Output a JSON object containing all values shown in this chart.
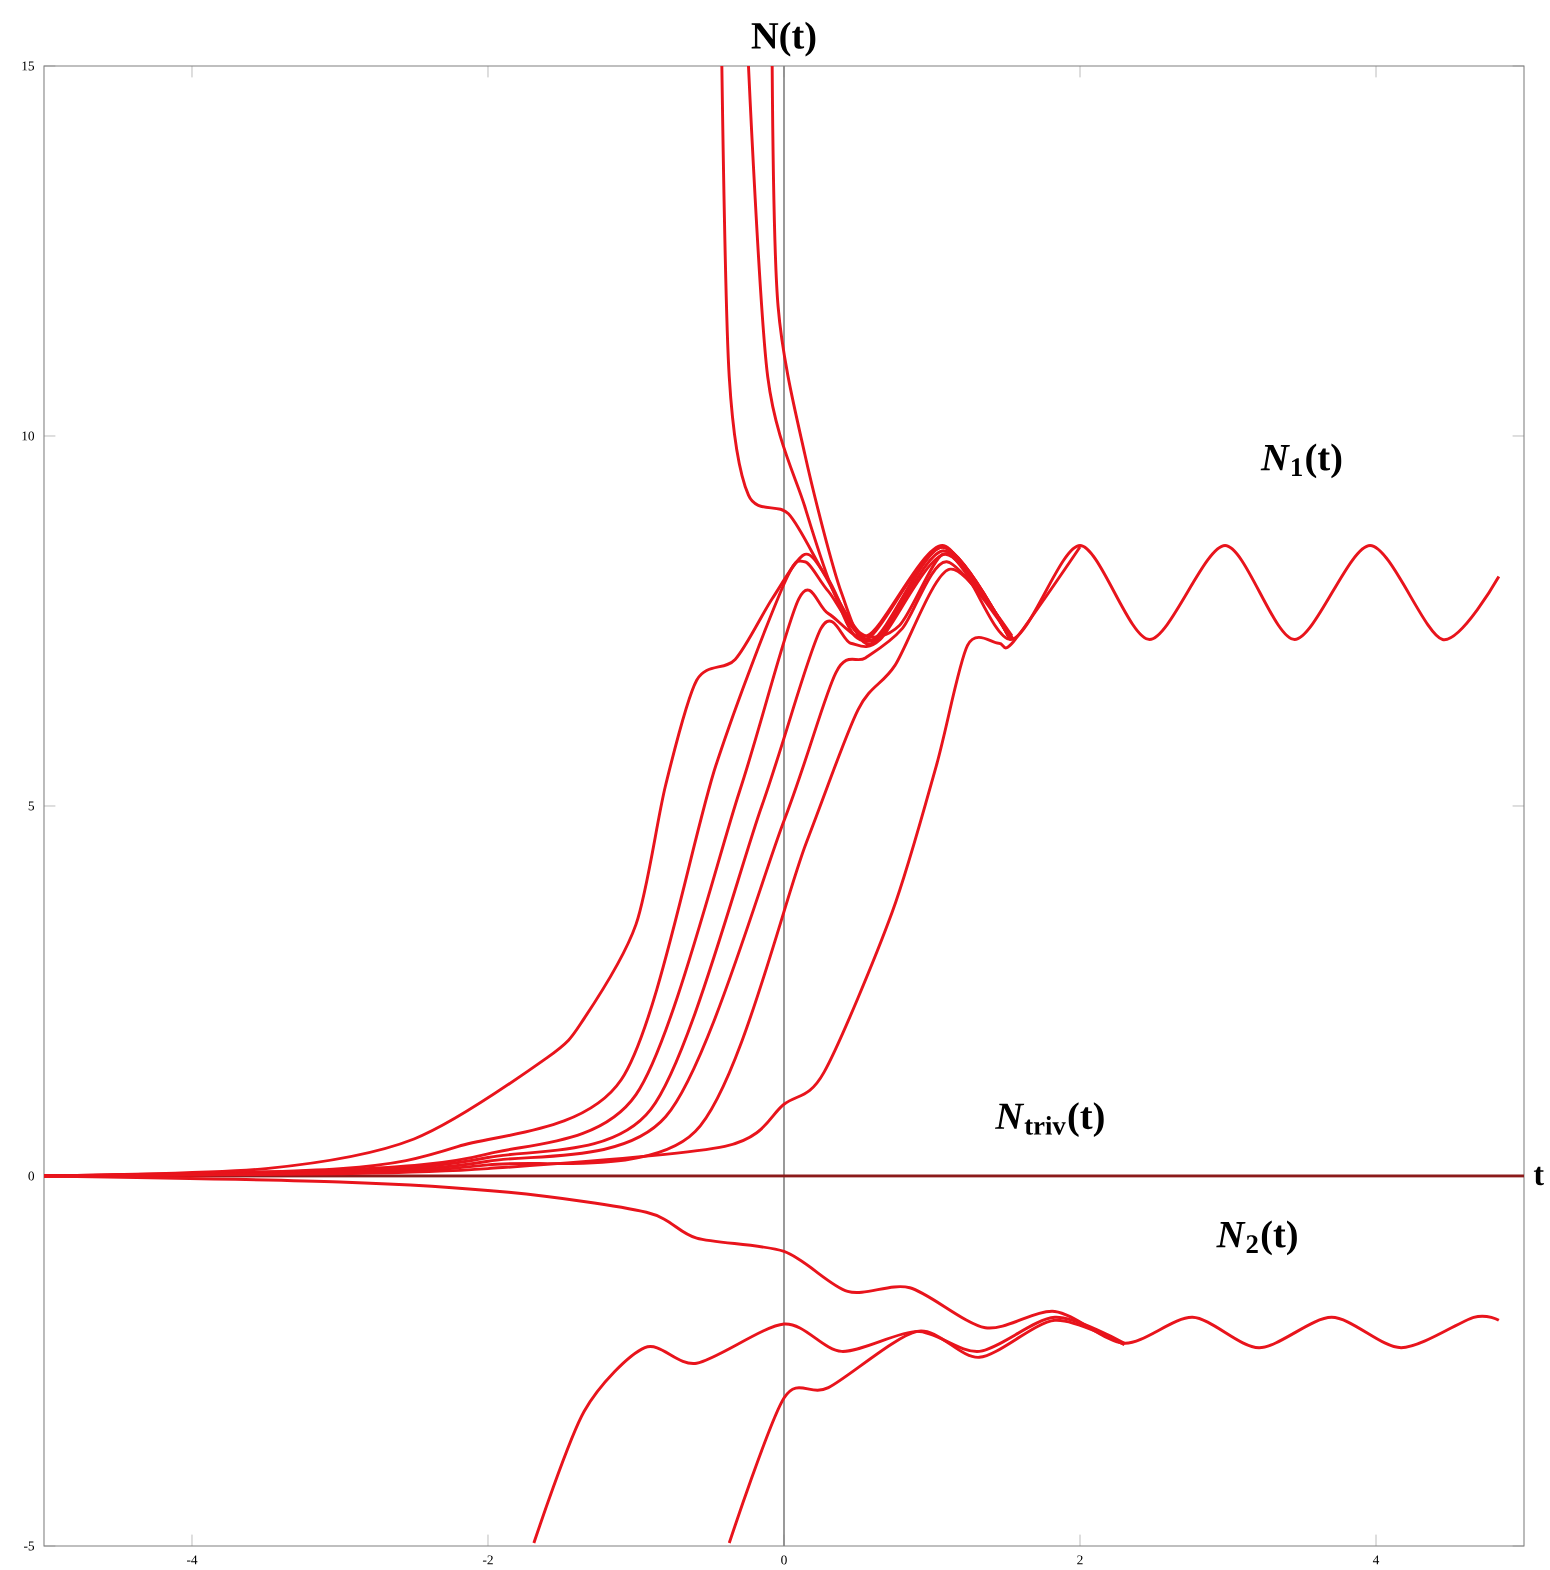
{
  "chart_data": {
    "type": "line",
    "ylabel": "N(t)",
    "xlabel": "t",
    "xlim": [
      -5,
      5
    ],
    "ylim": [
      -5,
      15
    ],
    "xticks": [
      -4,
      -2,
      0,
      2,
      4
    ],
    "yticks": [
      -5,
      0,
      5,
      10,
      15
    ],
    "grid": false,
    "marker": "none",
    "line_style": "solid",
    "ref_lines": [
      {
        "axis": "x",
        "value": 0,
        "color": "#808080"
      }
    ],
    "annotations": [
      "*N*$_{1}$(t)",
      "*N*$_{triv}$(t)",
      "*N*$_{2}$(t)"
    ],
    "series": [
      {
        "color": "#8b1a1a",
        "x": [
          -5,
          5
        ],
        "values": [
          0,
          0
        ]
      },
      {
        "color": "#e8141c",
        "x": [
          -5,
          -3.5,
          -2.5,
          -1.6,
          -1.35,
          -1.0,
          -0.8,
          -0.59,
          -0.33,
          -0.08,
          0.14,
          0.3,
          0.56,
          1.07,
          1.53,
          2.0,
          2.47,
          2.98,
          3.45,
          3.96,
          4.45,
          4.83
        ],
        "values": [
          0,
          0.1,
          0.5,
          1.6,
          2.13,
          3.4,
          5.28,
          6.7,
          6.98,
          7.8,
          8.4,
          8.06,
          7.3,
          8.52,
          7.25,
          8.52,
          7.25,
          8.52,
          7.25,
          8.52,
          7.25,
          8.1
        ]
      },
      {
        "color": "#e8141c",
        "x": [
          -5,
          -3,
          -2.2,
          -1.1,
          -0.46,
          0,
          0.14,
          0.3,
          0.6,
          1.07,
          1.53
        ],
        "values": [
          0,
          0.1,
          0.4,
          1.3,
          5.55,
          8.0,
          8.3,
          7.9,
          7.25,
          8.5,
          7.25
        ]
      },
      {
        "color": "#e8141c",
        "x": [
          -5,
          -3,
          -2,
          -1.0,
          -0.3,
          0.1,
          0.3,
          0.62,
          1.08,
          1.53
        ],
        "values": [
          0,
          0.08,
          0.3,
          1.1,
          5.2,
          7.8,
          7.6,
          7.25,
          8.45,
          7.25
        ]
      },
      {
        "color": "#e8141c",
        "x": [
          -5,
          -3,
          -2,
          -0.9,
          -0.15,
          0.25,
          0.45,
          0.65,
          1.09,
          1.53
        ],
        "values": [
          0,
          0.06,
          0.25,
          0.9,
          5.0,
          7.4,
          7.2,
          7.25,
          8.4,
          7.25
        ]
      },
      {
        "color": "#e8141c",
        "x": [
          -5,
          -3,
          -2,
          -0.8,
          0,
          0.35,
          0.55,
          0.8,
          1.1,
          1.54
        ],
        "values": [
          0,
          0.05,
          0.2,
          0.8,
          4.8,
          6.8,
          7.0,
          7.4,
          8.3,
          7.25
        ]
      },
      {
        "color": "#e8141c",
        "x": [
          -5,
          -3,
          -2,
          -0.6,
          0.15,
          0.5,
          0.75,
          1.12,
          1.55
        ],
        "values": [
          0,
          0.04,
          0.15,
          0.6,
          4.5,
          6.3,
          6.9,
          8.2,
          7.25
        ]
      },
      {
        "color": "#e8141c",
        "x": [
          -5,
          -3,
          -2,
          -0.4,
          0,
          0.27,
          0.73,
          1.03,
          1.24,
          1.45,
          1.55,
          2.0
        ],
        "values": [
          0,
          0.03,
          0.1,
          0.4,
          0.97,
          1.4,
          3.56,
          5.55,
          7.17,
          7.2,
          7.22,
          8.5
        ]
      },
      {
        "color": "#e8141c",
        "x": [
          -0.42,
          -0.37,
          -0.24,
          0.03,
          0.27,
          0.52,
          0.78,
          1.07,
          1.29,
          1.54
        ],
        "values": [
          15,
          10.8,
          9.2,
          8.95,
          8.14,
          7.33,
          7.44,
          8.4,
          7.98,
          7.3
        ]
      },
      {
        "color": "#e8141c",
        "x": [
          -0.24,
          -0.11,
          0.14,
          0.34,
          0.56,
          1.07,
          1.53
        ],
        "values": [
          15,
          10.8,
          9.05,
          7.87,
          7.25,
          8.5,
          7.25
        ]
      },
      {
        "color": "#e8141c",
        "x": [
          -0.08,
          -0.04,
          0.14,
          0.39,
          0.6,
          1.07,
          1.53
        ],
        "values": [
          15,
          11.75,
          9.76,
          7.87,
          7.2,
          8.5,
          7.25
        ]
      },
      {
        "color": "#e8141c",
        "x": [
          -5,
          -3,
          -1.86,
          -0.93,
          -0.59,
          0,
          0.43,
          0.85,
          1.36,
          1.83,
          2.3,
          2.76,
          3.21,
          3.7,
          4.17,
          4.66,
          4.83
        ],
        "values": [
          0,
          -0.08,
          -0.22,
          -0.49,
          -0.84,
          -1.02,
          -1.56,
          -1.51,
          -2.05,
          -1.83,
          -2.26,
          -1.91,
          -2.32,
          -1.91,
          -2.32,
          -1.91,
          -1.95
        ]
      },
      {
        "color": "#e8141c",
        "x": [
          -1.69,
          -1.35,
          -0.94,
          -0.59,
          0,
          0.39,
          0.9,
          1.32,
          1.83,
          2.3
        ],
        "values": [
          -4.96,
          -3.18,
          -2.32,
          -2.53,
          -2.0,
          -2.37,
          -2.1,
          -2.37,
          -1.91,
          -2.26
        ]
      },
      {
        "color": "#e8141c",
        "x": [
          -0.37,
          0,
          0.3,
          0.9,
          1.32,
          1.83,
          2.3
        ],
        "values": [
          -4.96,
          -3.0,
          -2.86,
          -2.1,
          -2.45,
          -1.95,
          -2.28
        ]
      }
    ]
  }
}
